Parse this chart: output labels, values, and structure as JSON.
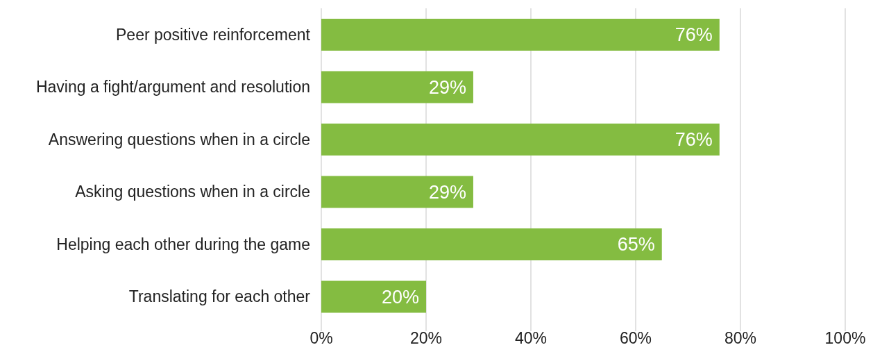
{
  "chart_data": {
    "type": "bar",
    "orientation": "horizontal",
    "categories": [
      "Peer positive reinforcement",
      "Having a fight/argument and resolution",
      "Answering questions when in a circle",
      "Asking questions when in a circle",
      "Helping each other during the game",
      "Translating for each other"
    ],
    "values": [
      76,
      29,
      76,
      29,
      65,
      20
    ],
    "value_labels": [
      "76%",
      "29%",
      "76%",
      "29%",
      "65%",
      "20%"
    ],
    "color": "#84bc41",
    "xlim": [
      0,
      100
    ],
    "xticks": [
      {
        "value": 0,
        "label": "0%"
      },
      {
        "value": 20,
        "label": "20%"
      },
      {
        "value": 40,
        "label": "40%"
      },
      {
        "value": 60,
        "label": "60%"
      },
      {
        "value": 80,
        "label": "80%"
      },
      {
        "value": 100,
        "label": "100%"
      }
    ],
    "grid": "x",
    "legend": false
  }
}
